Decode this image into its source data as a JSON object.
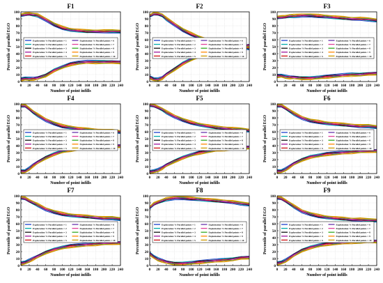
{
  "colors": [
    "#1a3fcc",
    "#00aaaa",
    "#111111",
    "#a0139b",
    "#cc1111",
    "#6633aa",
    "#e0409a",
    "#33aa22",
    "#ff8800",
    "#cc9900"
  ],
  "legend_labels": [
    "Exploration % Parallel points = 1",
    "Exploration % Parallel points = 2",
    "Exploration % Parallel points = 3",
    "Exploration % Parallel points = 4",
    "Exploration % Parallel points = 5",
    "Exploitation % Parallel points = 6",
    "Exploitation % Parallel points = 7",
    "Exploitation % Parallel points = 8",
    "Exploitation % Parallel points = 9",
    "Exploitation % Parallel points = 10"
  ],
  "chart_data": [
    {
      "type": "line",
      "title": "F1",
      "xlabel": "Number of point infills",
      "ylabel": "Percentile of parallel EGO",
      "xlim": [
        0,
        240
      ],
      "ylim": [
        0,
        100
      ],
      "grid": true,
      "legend": "center",
      "top": {
        "x": [
          0,
          10,
          20,
          30,
          40,
          60,
          80,
          100,
          120,
          140,
          160,
          180,
          200,
          220,
          240
        ],
        "y": [
          95,
          96,
          97,
          96,
          95,
          89,
          82,
          77,
          74,
          73,
          72,
          72,
          72,
          72,
          72
        ]
      },
      "bottom": {
        "x": [
          0,
          10,
          20,
          30,
          40,
          60,
          80,
          100,
          120,
          140,
          160,
          180,
          200,
          220,
          240
        ],
        "y": [
          3,
          4,
          4,
          4,
          5,
          9,
          16,
          21,
          25,
          27,
          28,
          28,
          28,
          28,
          28
        ]
      }
    },
    {
      "type": "line",
      "title": "F2",
      "xlabel": "Number of point infills",
      "ylabel": "Percentile of parallel EGO",
      "xlim": [
        0,
        240
      ],
      "ylim": [
        0,
        100
      ],
      "grid": true,
      "legend": "center",
      "top": {
        "x": [
          0,
          10,
          20,
          30,
          40,
          60,
          80,
          100,
          120,
          140,
          160,
          180,
          200,
          220,
          240
        ],
        "y": [
          94,
          97,
          97,
          95,
          90,
          82,
          74,
          68,
          63,
          59,
          56,
          54,
          52,
          50,
          48
        ]
      },
      "bottom": {
        "x": [
          0,
          10,
          20,
          30,
          40,
          60,
          80,
          100,
          120,
          140,
          160,
          180,
          200,
          220,
          240
        ],
        "y": [
          6,
          3,
          3,
          5,
          10,
          18,
          26,
          32,
          37,
          41,
          44,
          46,
          48,
          50,
          52
        ]
      }
    },
    {
      "type": "line",
      "title": "F3",
      "xlabel": "Number of point infills",
      "ylabel": "Percentile of parallel EGO",
      "xlim": [
        0,
        240
      ],
      "ylim": [
        0,
        100
      ],
      "grid": true,
      "legend": "center",
      "top": {
        "x": [
          0,
          10,
          20,
          30,
          40,
          60,
          80,
          100,
          120,
          140,
          160,
          180,
          200,
          220,
          240
        ],
        "y": [
          92,
          92,
          93,
          94,
          94,
          95,
          95,
          94,
          93,
          92,
          91,
          90,
          90,
          89,
          88
        ]
      },
      "bottom": {
        "x": [
          0,
          10,
          20,
          30,
          40,
          60,
          80,
          100,
          120,
          140,
          160,
          180,
          200,
          220,
          240
        ],
        "y": [
          8,
          8,
          7,
          6,
          6,
          5,
          5,
          6,
          7,
          8,
          9,
          10,
          10,
          11,
          12
        ]
      }
    },
    {
      "type": "line",
      "title": "F4",
      "xlabel": "Number of point infills",
      "ylabel": "Percentile of parallel EGO",
      "xlim": [
        0,
        240
      ],
      "ylim": [
        0,
        100
      ],
      "grid": true,
      "legend": "center",
      "top": {
        "x": [
          0,
          10,
          20,
          30,
          40,
          60,
          80,
          100,
          120,
          140,
          160,
          180,
          200,
          220,
          240
        ],
        "y": [
          97,
          97,
          93,
          88,
          84,
          77,
          72,
          68,
          66,
          64,
          63,
          62,
          61,
          61,
          60
        ]
      },
      "bottom": {
        "x": [
          0,
          10,
          20,
          30,
          40,
          60,
          80,
          100,
          120,
          140,
          160,
          180,
          200,
          220,
          240
        ],
        "y": [
          3,
          3,
          7,
          12,
          16,
          23,
          28,
          32,
          34,
          36,
          37,
          38,
          39,
          39,
          40
        ]
      }
    },
    {
      "type": "line",
      "title": "F5",
      "xlabel": "Number of point infills",
      "ylabel": "Percentile of parallel EGO",
      "xlim": [
        0,
        240
      ],
      "ylim": [
        0,
        100
      ],
      "grid": true,
      "legend": "center",
      "top": {
        "x": [
          0,
          10,
          20,
          30,
          40,
          60,
          80,
          100,
          120,
          140,
          160,
          180,
          200,
          220,
          240
        ],
        "y": [
          98,
          97,
          95,
          92,
          88,
          82,
          77,
          73,
          70,
          68,
          66,
          65,
          64,
          63,
          62
        ]
      },
      "bottom": {
        "x": [
          0,
          10,
          20,
          30,
          40,
          60,
          80,
          100,
          120,
          140,
          160,
          180,
          200,
          220,
          240
        ],
        "y": [
          2,
          3,
          5,
          8,
          12,
          18,
          23,
          27,
          30,
          32,
          34,
          35,
          36,
          37,
          38
        ]
      }
    },
    {
      "type": "line",
      "title": "F6",
      "xlabel": "Number of point infills",
      "ylabel": "Percentile of parallel EGO",
      "xlim": [
        0,
        240
      ],
      "ylim": [
        0,
        100
      ],
      "grid": true,
      "legend": "center",
      "top": {
        "x": [
          0,
          10,
          20,
          30,
          40,
          60,
          80,
          100,
          120,
          140,
          160,
          180,
          200,
          220,
          240
        ],
        "y": [
          97,
          97,
          94,
          90,
          86,
          80,
          76,
          74,
          72,
          71,
          70,
          69,
          68,
          68,
          67
        ]
      },
      "bottom": {
        "x": [
          0,
          10,
          20,
          30,
          40,
          60,
          80,
          100,
          120,
          140,
          160,
          180,
          200,
          220,
          240
        ],
        "y": [
          3,
          3,
          6,
          10,
          14,
          20,
          24,
          26,
          28,
          29,
          30,
          31,
          32,
          32,
          33
        ]
      }
    },
    {
      "type": "line",
      "title": "F7",
      "xlabel": "Number of point infills",
      "ylabel": "Percentile of parallel EGO",
      "xlim": [
        0,
        240
      ],
      "ylim": [
        0,
        100
      ],
      "grid": true,
      "legend": "center",
      "top": {
        "x": [
          0,
          10,
          20,
          30,
          40,
          60,
          80,
          100,
          120,
          140,
          160,
          180,
          200,
          220,
          240
        ],
        "y": [
          97,
          96,
          93,
          90,
          87,
          81,
          77,
          74,
          72,
          71,
          70,
          69,
          68,
          68,
          67
        ]
      },
      "bottom": {
        "x": [
          0,
          10,
          20,
          30,
          40,
          60,
          80,
          100,
          120,
          140,
          160,
          180,
          200,
          220,
          240
        ],
        "y": [
          3,
          4,
          7,
          10,
          13,
          19,
          23,
          26,
          28,
          29,
          30,
          31,
          32,
          32,
          33
        ]
      }
    },
    {
      "type": "line",
      "title": "F8",
      "xlabel": "Number of point infills",
      "ylabel": "Percentile of parallel EGO",
      "xlim": [
        0,
        240
      ],
      "ylim": [
        0,
        100
      ],
      "grid": true,
      "legend": "center",
      "top": {
        "x": [
          0,
          10,
          20,
          30,
          40,
          60,
          80,
          100,
          120,
          140,
          160,
          180,
          200,
          220,
          240
        ],
        "y": [
          83,
          88,
          91,
          93,
          95,
          97,
          97,
          96,
          95,
          94,
          93,
          92,
          91,
          89,
          88
        ]
      },
      "bottom": {
        "x": [
          0,
          10,
          20,
          30,
          40,
          60,
          80,
          100,
          120,
          140,
          160,
          180,
          200,
          220,
          240
        ],
        "y": [
          17,
          12,
          9,
          7,
          5,
          3,
          3,
          4,
          5,
          6,
          7,
          8,
          9,
          11,
          12
        ]
      }
    },
    {
      "type": "line",
      "title": "F9",
      "xlabel": "Number of point infills",
      "ylabel": "Percentile of parallel EGO",
      "xlim": [
        0,
        240
      ],
      "ylim": [
        0,
        100
      ],
      "grid": true,
      "legend": "center",
      "top": {
        "x": [
          0,
          10,
          20,
          30,
          40,
          60,
          80,
          100,
          120,
          140,
          160,
          180,
          200,
          220,
          240
        ],
        "y": [
          97,
          96,
          93,
          89,
          85,
          78,
          74,
          71,
          69,
          68,
          67,
          66,
          66,
          65,
          65
        ]
      },
      "bottom": {
        "x": [
          0,
          10,
          20,
          30,
          40,
          60,
          80,
          100,
          120,
          140,
          160,
          180,
          200,
          220,
          240
        ],
        "y": [
          3,
          4,
          7,
          11,
          15,
          22,
          26,
          29,
          31,
          32,
          33,
          34,
          34,
          35,
          35
        ]
      }
    }
  ]
}
